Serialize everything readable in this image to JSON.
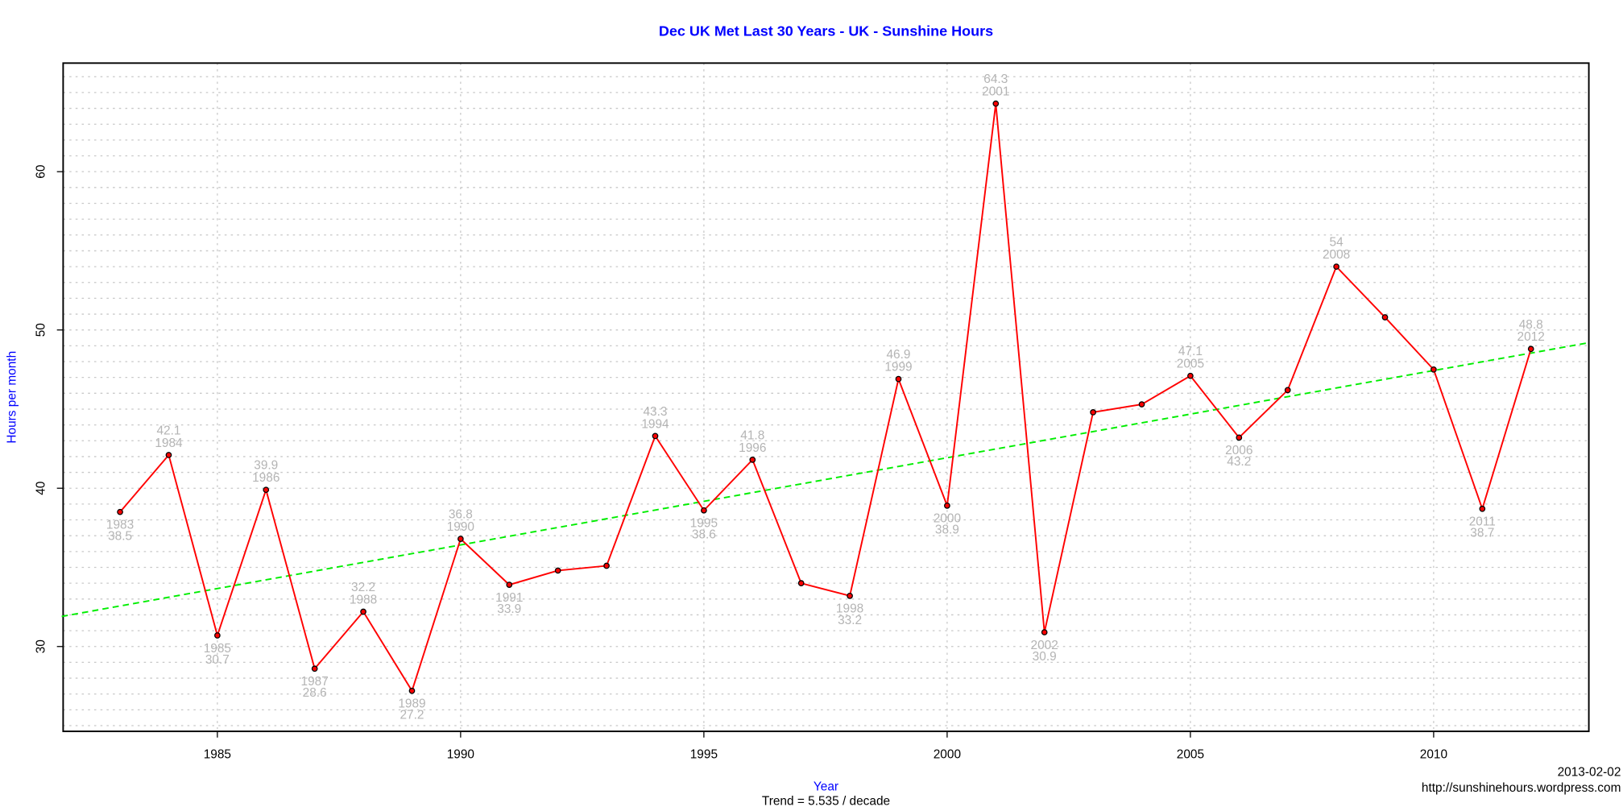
{
  "chart_data": {
    "type": "line",
    "title": "Dec UK Met Last 30 Years - UK - Sunshine Hours",
    "xlabel": "Year",
    "ylabel": "Hours per month",
    "subtitle": "Trend = 5.535 / decade",
    "date": "2013-02-02",
    "source": "http://sunshinehours.wordpress.com",
    "x": [
      1983,
      1984,
      1985,
      1986,
      1987,
      1988,
      1989,
      1990,
      1991,
      1992,
      1993,
      1994,
      1995,
      1996,
      1997,
      1998,
      1999,
      2000,
      2001,
      2002,
      2003,
      2004,
      2005,
      2006,
      2007,
      2008,
      2009,
      2010,
      2011,
      2012
    ],
    "values": [
      38.5,
      42.1,
      30.7,
      39.9,
      28.6,
      32.2,
      27.2,
      36.8,
      33.9,
      34.8,
      35.1,
      43.3,
      38.6,
      41.8,
      34.0,
      33.2,
      46.9,
      38.9,
      64.3,
      30.9,
      44.8,
      45.3,
      47.1,
      43.2,
      46.2,
      54,
      50.8,
      47.5,
      38.7,
      48.8
    ],
    "value_labels": [
      "38.5",
      "42.1",
      "30.7",
      "39.9",
      "28.6",
      "32.2",
      "27.2",
      "36.8",
      "33.9",
      null,
      null,
      "43.3",
      "38.6",
      "41.8",
      null,
      "33.2",
      "46.9",
      "38.9",
      "64.3",
      "30.9",
      null,
      null,
      "47.1",
      "43.2",
      null,
      "54",
      null,
      null,
      "38.7",
      "48.8"
    ],
    "color": "#ff0000",
    "trend": {
      "x": [
        1981.8,
        2013.2
      ],
      "values": [
        31.9,
        49.2
      ],
      "color": "#00ee00"
    },
    "xlim": [
      1981.83,
      2013.19
    ],
    "xticks": [
      1985,
      1990,
      1995,
      2000,
      2005,
      2010
    ],
    "ylim": [
      24.64,
      66.86
    ],
    "yticks": [
      30,
      40,
      50,
      60
    ],
    "grid": true
  }
}
